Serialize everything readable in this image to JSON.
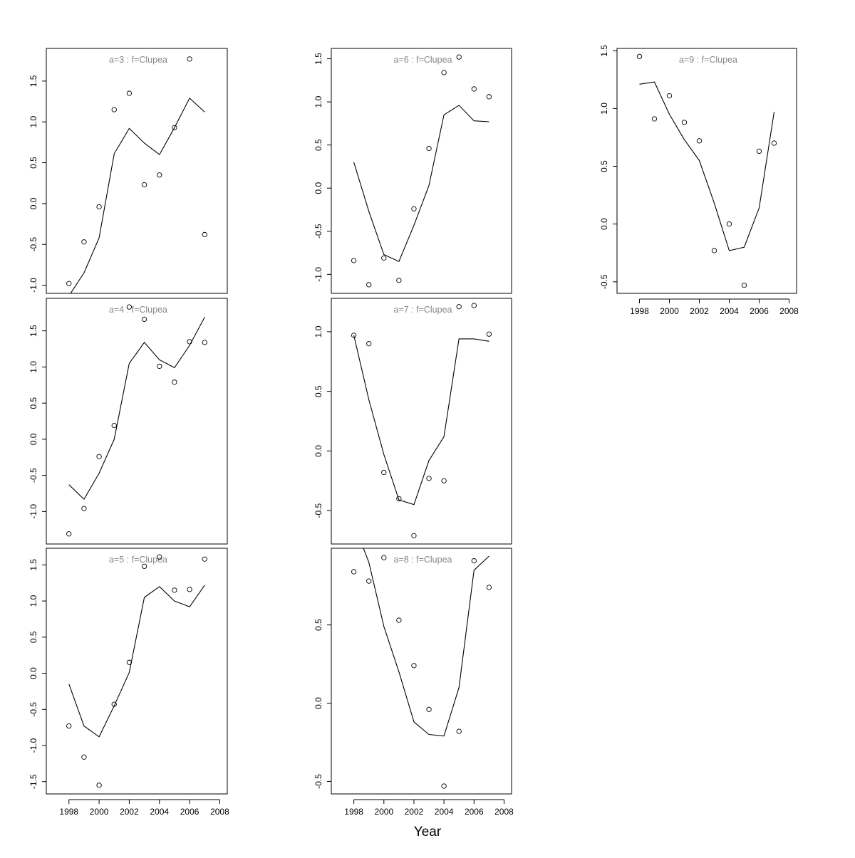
{
  "xlabel": "Year",
  "chart_data": [
    {
      "type": "line",
      "title": "a=3  :  f=Clupea",
      "x": [
        1998,
        1999,
        2000,
        2001,
        2002,
        2003,
        2004,
        2005,
        2006,
        2007
      ],
      "series": [
        {
          "mode": "lines",
          "values": [
            -1.13,
            -0.85,
            -0.42,
            0.61,
            0.92,
            0.74,
            0.6,
            0.93,
            1.29,
            1.12
          ]
        },
        {
          "mode": "points",
          "values": [
            -0.98,
            -0.47,
            -0.04,
            1.15,
            1.35,
            0.23,
            0.35,
            0.93,
            1.77,
            -0.38
          ]
        }
      ],
      "xlim": [
        1996.5,
        2008.5
      ],
      "ylim": [
        -1.1,
        1.9
      ],
      "xticks": [],
      "yticks": [
        -1.0,
        -0.5,
        0.0,
        0.5,
        1.0,
        1.5
      ]
    },
    {
      "type": "line",
      "title": "a=4  :  f=Clupea",
      "x": [
        1998,
        1999,
        2000,
        2001,
        2002,
        2003,
        2004,
        2005,
        2006,
        2007
      ],
      "series": [
        {
          "mode": "lines",
          "values": [
            -0.63,
            -0.83,
            -0.47,
            -0.0,
            1.05,
            1.34,
            1.1,
            0.99,
            1.3,
            1.69
          ]
        },
        {
          "mode": "points",
          "values": [
            -1.31,
            -0.96,
            -0.24,
            0.19,
            1.83,
            1.66,
            1.01,
            0.79,
            1.35,
            1.34
          ]
        }
      ],
      "xlim": [
        1996.5,
        2008.5
      ],
      "ylim": [
        -1.45,
        1.95
      ],
      "xticks": [],
      "yticks": [
        -1.0,
        -0.5,
        0.0,
        0.5,
        1.0,
        1.5
      ]
    },
    {
      "type": "line",
      "title": "a=5  :  f=Clupea",
      "x": [
        1998,
        1999,
        2000,
        2001,
        2002,
        2003,
        2004,
        2005,
        2006,
        2007
      ],
      "series": [
        {
          "mode": "lines",
          "values": [
            -0.15,
            -0.73,
            -0.88,
            -0.45,
            0.01,
            1.05,
            1.2,
            1.0,
            0.92,
            1.22
          ]
        },
        {
          "mode": "points",
          "values": [
            -0.73,
            -1.16,
            -1.55,
            -0.43,
            0.15,
            1.48,
            1.61,
            1.15,
            1.16,
            1.58
          ]
        }
      ],
      "xlim": [
        1996.5,
        2008.5
      ],
      "ylim": [
        -1.67,
        1.73
      ],
      "xticks": [
        1998,
        2000,
        2002,
        2004,
        2006,
        2008
      ],
      "yticks": [
        -1.5,
        -1.0,
        -0.5,
        0.0,
        0.5,
        1.0,
        1.5
      ]
    },
    {
      "type": "line",
      "title": "a=6  :  f=Clupea",
      "x": [
        1998,
        1999,
        2000,
        2001,
        2002,
        2003,
        2004,
        2005,
        2006,
        2007
      ],
      "series": [
        {
          "mode": "lines",
          "values": [
            0.3,
            -0.27,
            -0.77,
            -0.85,
            -0.43,
            0.03,
            0.85,
            0.96,
            0.78,
            0.77
          ]
        },
        {
          "mode": "points",
          "values": [
            -0.84,
            -1.12,
            -0.81,
            -1.07,
            -0.24,
            0.46,
            1.34,
            1.52,
            1.15,
            1.06
          ]
        }
      ],
      "xlim": [
        1996.5,
        2008.5
      ],
      "ylim": [
        -1.22,
        1.62
      ],
      "xticks": [],
      "yticks": [
        -1.0,
        -0.5,
        0.0,
        0.5,
        1.0,
        1.5
      ]
    },
    {
      "type": "line",
      "title": "a=7  :  f=Clupea",
      "x": [
        1998,
        1999,
        2000,
        2001,
        2002,
        2003,
        2004,
        2005,
        2006,
        2007
      ],
      "series": [
        {
          "mode": "lines",
          "values": [
            0.97,
            0.43,
            -0.03,
            -0.41,
            -0.45,
            -0.08,
            0.12,
            0.94,
            0.94,
            0.92
          ]
        },
        {
          "mode": "points",
          "values": [
            0.97,
            0.9,
            -0.18,
            -0.4,
            -0.71,
            -0.23,
            -0.25,
            1.21,
            1.22,
            0.98
          ]
        }
      ],
      "xlim": [
        1996.5,
        2008.5
      ],
      "ylim": [
        -0.78,
        1.28
      ],
      "xticks": [],
      "yticks": [
        -0.5,
        0.0,
        0.5,
        1.0
      ]
    },
    {
      "type": "line",
      "title": "a=8  :  f=Clupea",
      "x": [
        1998,
        1999,
        2000,
        2001,
        2002,
        2003,
        2004,
        2005,
        2006,
        2007
      ],
      "series": [
        {
          "mode": "lines",
          "values": [
            1.15,
            0.9,
            0.49,
            0.2,
            -0.12,
            -0.2,
            -0.21,
            0.1,
            0.85,
            0.94
          ]
        },
        {
          "mode": "points",
          "values": [
            0.84,
            0.78,
            0.93,
            0.53,
            0.24,
            -0.04,
            -0.53,
            -0.18,
            0.91,
            0.74
          ]
        }
      ],
      "xlim": [
        1996.5,
        2008.5
      ],
      "ylim": [
        -0.58,
        0.99
      ],
      "xticks": [
        1998,
        2000,
        2002,
        2004,
        2006,
        2008
      ],
      "yticks": [
        -0.5,
        0.0,
        0.5
      ]
    },
    {
      "type": "line",
      "title": "a=9  :  f=Clupea",
      "x": [
        1998,
        1999,
        2000,
        2001,
        2002,
        2003,
        2004,
        2005,
        2006,
        2007
      ],
      "series": [
        {
          "mode": "lines",
          "values": [
            1.21,
            1.23,
            0.95,
            0.73,
            0.55,
            0.18,
            -0.23,
            -0.2,
            0.14,
            0.97
          ]
        },
        {
          "mode": "points",
          "values": [
            1.45,
            0.91,
            1.11,
            0.88,
            0.72,
            -0.23,
            0.0,
            -0.53,
            0.63,
            0.7
          ]
        }
      ],
      "xlim": [
        1996.5,
        2008.5
      ],
      "ylim": [
        -0.6,
        1.52
      ],
      "xticks": [
        1998,
        2000,
        2002,
        2004,
        2006,
        2008
      ],
      "yticks": [
        -0.5,
        0.0,
        0.5,
        1.0,
        1.5
      ]
    }
  ]
}
